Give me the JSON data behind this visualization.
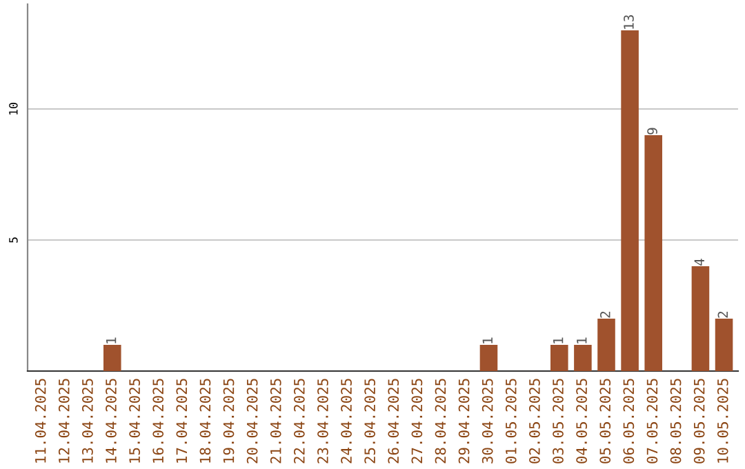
{
  "chart_data": {
    "type": "bar",
    "categories": [
      "11.04.2025",
      "12.04.2025",
      "13.04.2025",
      "14.04.2025",
      "15.04.2025",
      "16.04.2025",
      "17.04.2025",
      "18.04.2025",
      "19.04.2025",
      "20.04.2025",
      "21.04.2025",
      "22.04.2025",
      "23.04.2025",
      "24.04.2025",
      "25.04.2025",
      "26.04.2025",
      "27.04.2025",
      "28.04.2025",
      "29.04.2025",
      "30.04.2025",
      "01.05.2025",
      "02.05.2025",
      "03.05.2025",
      "04.05.2025",
      "05.05.2025",
      "06.05.2025",
      "07.05.2025",
      "08.05.2025",
      "09.05.2025",
      "10.05.2025"
    ],
    "values": [
      0,
      0,
      0,
      1,
      0,
      0,
      0,
      0,
      0,
      0,
      0,
      0,
      0,
      0,
      0,
      0,
      0,
      0,
      0,
      1,
      0,
      0,
      1,
      1,
      2,
      13,
      9,
      0,
      4,
      2
    ],
    "value_labels": [
      null,
      null,
      null,
      "1",
      null,
      null,
      null,
      null,
      null,
      null,
      null,
      null,
      null,
      null,
      null,
      null,
      null,
      null,
      null,
      "1",
      null,
      null,
      "1",
      "1",
      "2",
      "13",
      "9",
      null,
      "4",
      "2"
    ],
    "color": "#a0522d",
    "ylim": [
      0,
      14
    ],
    "yticks": [
      5,
      10
    ],
    "grid": "y"
  }
}
